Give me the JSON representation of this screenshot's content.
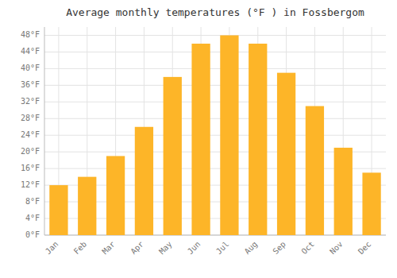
{
  "chart_data": {
    "type": "bar",
    "title": "Average monthly temperatures (°F ) in Fossbergom",
    "categories": [
      "Jan",
      "Feb",
      "Mar",
      "Apr",
      "May",
      "Jun",
      "Jul",
      "Aug",
      "Sep",
      "Oct",
      "Nov",
      "Dec"
    ],
    "values": [
      12,
      14,
      19,
      26,
      38,
      46,
      48,
      46,
      39,
      31,
      21,
      15
    ],
    "color": "#FDB528",
    "ylim": [
      0,
      50
    ],
    "yticks": [
      {
        "value": 0,
        "label": "0°F"
      },
      {
        "value": 4,
        "label": "4°F"
      },
      {
        "value": 8,
        "label": "8°F"
      },
      {
        "value": 12,
        "label": "12°F"
      },
      {
        "value": 16,
        "label": "16°F"
      },
      {
        "value": 20,
        "label": "20°F"
      },
      {
        "value": 24,
        "label": "24°F"
      },
      {
        "value": 28,
        "label": "28°F"
      },
      {
        "value": 32,
        "label": "32°F"
      },
      {
        "value": 36,
        "label": "36°F"
      },
      {
        "value": 40,
        "label": "40°F"
      },
      {
        "value": 44,
        "label": "44°F"
      },
      {
        "value": 48,
        "label": "48°F"
      }
    ],
    "grid": true
  }
}
